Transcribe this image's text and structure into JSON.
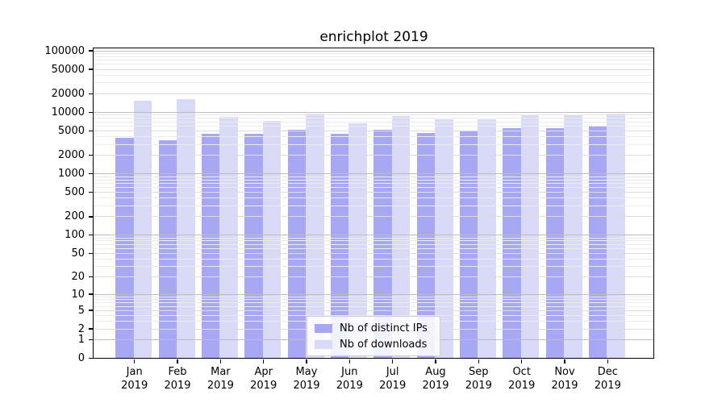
{
  "figure": {
    "title": "enrichplot 2019"
  },
  "chart_data": {
    "type": "bar",
    "title": "enrichplot 2019",
    "yscale": "log1p",
    "grid": true,
    "legend_position": "lower center",
    "ylim": [
      0,
      100000
    ],
    "y_ticks": [
      0,
      1,
      2,
      5,
      10,
      20,
      50,
      100,
      200,
      500,
      1000,
      2000,
      5000,
      10000,
      20000,
      50000,
      100000
    ],
    "categories": [
      "Jan 2019",
      "Feb 2019",
      "Mar 2019",
      "Apr 2019",
      "May 2019",
      "Jun 2019",
      "Jul 2019",
      "Aug 2019",
      "Sep 2019",
      "Oct 2019",
      "Nov 2019",
      "Dec 2019"
    ],
    "month_labels": [
      "Jan",
      "Feb",
      "Mar",
      "Apr",
      "May",
      "Jun",
      "Jul",
      "Aug",
      "Sep",
      "Oct",
      "Nov",
      "Dec"
    ],
    "year_label": "2019",
    "series": [
      {
        "name": "Nb of distinct IPs",
        "color": "#a7a7f3",
        "values": [
          3800,
          3500,
          4400,
          4350,
          5200,
          4400,
          5050,
          4600,
          5000,
          5500,
          5400,
          5900
        ]
      },
      {
        "name": "Nb of downloads",
        "color": "#d9d9f8",
        "values": [
          15000,
          16200,
          8400,
          7100,
          9500,
          6600,
          8450,
          7500,
          7650,
          9000,
          8800,
          9300
        ]
      }
    ],
    "colors": {
      "grid_decade": "#bdbdbd",
      "grid_labeled": "#dcdcdc",
      "grid_minor": "#ebebeb",
      "axis": "#000000"
    }
  }
}
